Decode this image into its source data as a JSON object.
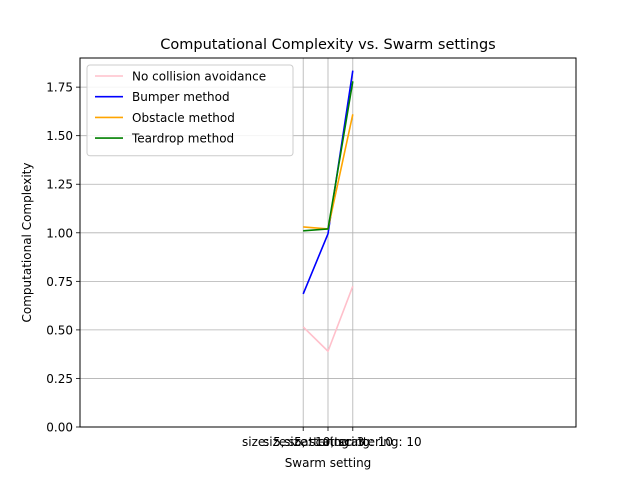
{
  "chart_data": {
    "type": "line",
    "title": "Computational Complexity vs. Swarm settings",
    "xlabel": "Swarm setting",
    "ylabel": "Computational Complexity",
    "categories": [
      "size: 5, scattering: 3",
      "size: 5, scattering: 10",
      "size: 10, scattering: 10"
    ],
    "ylim": [
      0,
      1.9
    ],
    "yticks": [
      0.0,
      0.25,
      0.5,
      0.75,
      1.0,
      1.25,
      1.5,
      1.75
    ],
    "ytick_labels": [
      "0.00",
      "0.25",
      "0.50",
      "0.75",
      "1.00",
      "1.25",
      "1.50",
      "1.75"
    ],
    "grid": true,
    "legend_position": "top-left",
    "series": [
      {
        "name": "No collision avoidance",
        "color": "#ffc0cb",
        "values": [
          0.515,
          0.39,
          0.725
        ]
      },
      {
        "name": "Bumper method",
        "color": "#0000ff",
        "values": [
          0.685,
          0.995,
          1.835
        ]
      },
      {
        "name": "Obstacle method",
        "color": "#ffa500",
        "values": [
          1.03,
          1.02,
          1.61
        ]
      },
      {
        "name": "Teardrop method",
        "color": "#008000",
        "values": [
          1.01,
          1.02,
          1.78
        ]
      }
    ]
  }
}
